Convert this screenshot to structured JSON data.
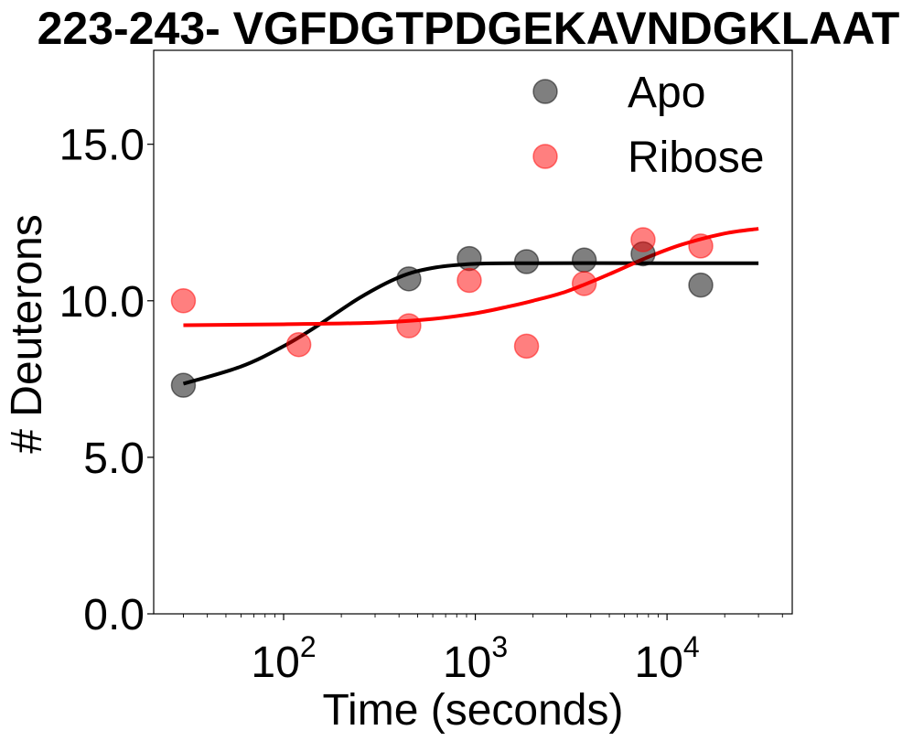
{
  "chart_data": {
    "type": "scatter",
    "title": "223-243- VGFDGTPDGEKAVNDGKLAAT",
    "xlabel": "Time (seconds)",
    "ylabel": "# Deuterons",
    "xscale": "log",
    "xlim": [
      21,
      45000
    ],
    "ylim": [
      0,
      18
    ],
    "xticks": [
      {
        "base": "10",
        "exp": "2",
        "value": 100
      },
      {
        "base": "10",
        "exp": "3",
        "value": 1000
      },
      {
        "base": "10",
        "exp": "4",
        "value": 10000
      }
    ],
    "yticks": [
      {
        "label": "0.0",
        "value": 0
      },
      {
        "label": "5.0",
        "value": 5
      },
      {
        "label": "10.0",
        "value": 10
      },
      {
        "label": "15.0",
        "value": 15
      }
    ],
    "legend_position": "top-right",
    "grid": false,
    "series": [
      {
        "name": "Apo",
        "color": "#000000",
        "points": [
          {
            "x": 30,
            "y": 7.3
          },
          {
            "x": 450,
            "y": 10.7
          },
          {
            "x": 930,
            "y": 11.35
          },
          {
            "x": 1850,
            "y": 11.25
          },
          {
            "x": 3700,
            "y": 11.3
          },
          {
            "x": 7500,
            "y": 11.5
          },
          {
            "x": 15000,
            "y": 10.5
          }
        ],
        "fit": [
          {
            "x": 30,
            "y": 7.35
          },
          {
            "x": 60,
            "y": 7.9
          },
          {
            "x": 100,
            "y": 8.55
          },
          {
            "x": 150,
            "y": 9.2
          },
          {
            "x": 250,
            "y": 10.1
          },
          {
            "x": 400,
            "y": 10.75
          },
          {
            "x": 600,
            "y": 11.05
          },
          {
            "x": 1000,
            "y": 11.18
          },
          {
            "x": 2000,
            "y": 11.2
          },
          {
            "x": 10000,
            "y": 11.2
          },
          {
            "x": 30000,
            "y": 11.2
          }
        ]
      },
      {
        "name": "Ribose",
        "color": "#ff0000",
        "points": [
          {
            "x": 30,
            "y": 10.0
          },
          {
            "x": 120,
            "y": 8.6
          },
          {
            "x": 450,
            "y": 9.2
          },
          {
            "x": 930,
            "y": 10.65
          },
          {
            "x": 1850,
            "y": 8.55
          },
          {
            "x": 3700,
            "y": 10.55
          },
          {
            "x": 7500,
            "y": 11.95
          },
          {
            "x": 15000,
            "y": 11.75
          }
        ],
        "fit": [
          {
            "x": 30,
            "y": 9.22
          },
          {
            "x": 100,
            "y": 9.25
          },
          {
            "x": 300,
            "y": 9.3
          },
          {
            "x": 600,
            "y": 9.42
          },
          {
            "x": 1000,
            "y": 9.6
          },
          {
            "x": 1500,
            "y": 9.82
          },
          {
            "x": 2000,
            "y": 10.0
          },
          {
            "x": 3000,
            "y": 10.3
          },
          {
            "x": 5000,
            "y": 10.85
          },
          {
            "x": 8000,
            "y": 11.4
          },
          {
            "x": 12000,
            "y": 11.8
          },
          {
            "x": 20000,
            "y": 12.15
          },
          {
            "x": 30000,
            "y": 12.3
          }
        ]
      }
    ]
  }
}
